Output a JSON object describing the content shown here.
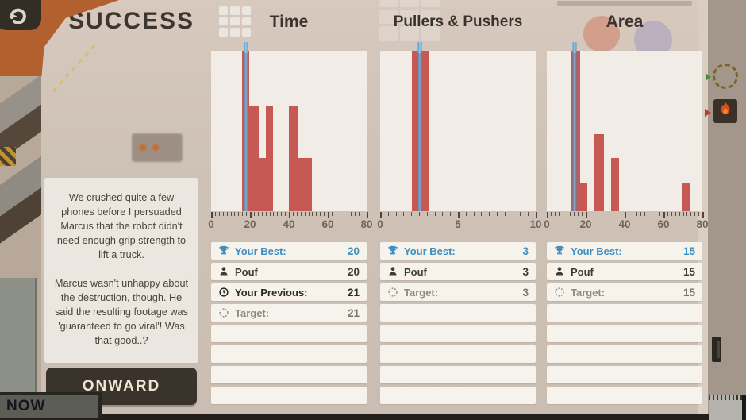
{
  "overlay": {
    "title": "SUCCESS",
    "onward_label": "ONWARD",
    "now_label": "NOW",
    "speech": {
      "paragraph1": "We crushed quite a few phones before I persuaded Marcus that the robot didn't need enough grip strength to lift a truck.",
      "paragraph2": "Marcus wasn't unhappy about the destruction, though. He said the resulting footage was 'guaranteed to go viral'! Was that good..?"
    }
  },
  "colors": {
    "bar_red": "#c65953",
    "marker_blue": "#7d9fc4",
    "marker_cap_blue": "#86c3e4",
    "best_blue": "#3d8ec2",
    "plot_background": "#f1ede6",
    "panel_beige": "#cfc2b6",
    "button_brown": "#3a332c"
  },
  "chart_data": [
    {
      "type": "bar",
      "title": "Time",
      "xlim": [
        0,
        80
      ],
      "xticks": [
        0,
        20,
        40,
        60,
        80
      ],
      "minor_tick_step": 2,
      "grid": false,
      "bins": [
        {
          "from": 16,
          "to": 19.5,
          "height": 1.0
        },
        {
          "from": 19.5,
          "to": 24.5,
          "height": 0.66
        },
        {
          "from": 24.5,
          "to": 28,
          "height": 0.33
        },
        {
          "from": 28,
          "to": 32,
          "height": 0.66
        },
        {
          "from": 40,
          "to": 44.5,
          "height": 0.66
        },
        {
          "from": 44.5,
          "to": 52,
          "height": 0.33
        }
      ],
      "marker_value": 17.8
    },
    {
      "type": "bar",
      "title": "Pullers & Pushers",
      "xlim": [
        0,
        10
      ],
      "xticks": [
        0,
        5,
        10
      ],
      "minor_tick_step": 0.5,
      "grid": false,
      "bins": [
        {
          "from": 2.05,
          "to": 3.1,
          "height": 1.0
        }
      ],
      "marker_value": 2.55
    },
    {
      "type": "bar",
      "title": "Area",
      "xlim": [
        0,
        80
      ],
      "xticks": [
        0,
        20,
        40,
        60,
        80
      ],
      "minor_tick_step": 2,
      "grid": false,
      "bins": [
        {
          "from": 12.5,
          "to": 17,
          "height": 1.0
        },
        {
          "from": 17,
          "to": 21,
          "height": 0.18
        },
        {
          "from": 24.5,
          "to": 29.5,
          "height": 0.48
        },
        {
          "from": 33,
          "to": 37,
          "height": 0.33
        },
        {
          "from": 69.5,
          "to": 73.5,
          "height": 0.18
        }
      ],
      "marker_value": 14.2
    }
  ],
  "panels": [
    {
      "total_rows": 8,
      "rows": [
        {
          "icon": "trophy-icon",
          "label": "Your Best:",
          "value": "20",
          "style": "best"
        },
        {
          "icon": "person-icon",
          "label": "Pouf",
          "value": "20",
          "style": "pouf"
        },
        {
          "icon": "clock-icon",
          "label": "Your Previous:",
          "value": "21",
          "style": "previous"
        },
        {
          "icon": "target-icon",
          "label": "Target:",
          "value": "21",
          "style": "target"
        }
      ]
    },
    {
      "total_rows": 8,
      "rows": [
        {
          "icon": "trophy-icon",
          "label": "Your Best:",
          "value": "3",
          "style": "best"
        },
        {
          "icon": "person-icon",
          "label": "Pouf",
          "value": "3",
          "style": "pouf"
        },
        {
          "icon": "target-icon",
          "label": "Target:",
          "value": "3",
          "style": "target"
        }
      ]
    },
    {
      "total_rows": 8,
      "rows": [
        {
          "icon": "trophy-icon",
          "label": "Your Best:",
          "value": "15",
          "style": "best"
        },
        {
          "icon": "person-icon",
          "label": "Pouf",
          "value": "15",
          "style": "pouf"
        },
        {
          "icon": "target-icon",
          "label": "Target:",
          "value": "15",
          "style": "target"
        }
      ]
    }
  ]
}
